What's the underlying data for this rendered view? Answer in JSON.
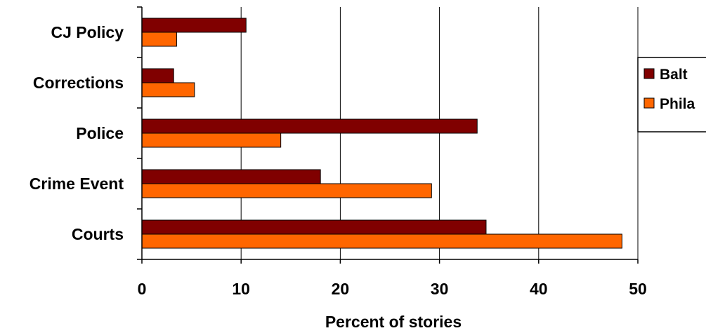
{
  "chart_data": {
    "type": "bar",
    "orientation": "horizontal",
    "categories": [
      "CJ Policy",
      "Corrections",
      "Police",
      "Crime Event",
      "Courts"
    ],
    "series": [
      {
        "name": "Balt",
        "color": "#800000",
        "values": [
          10.5,
          3.2,
          33.8,
          18.0,
          34.7
        ]
      },
      {
        "name": "Phila",
        "color": "#FF6600",
        "values": [
          3.5,
          5.3,
          14.0,
          29.2,
          48.4
        ]
      }
    ],
    "xlabel": "Percent of stories",
    "ylabel": "",
    "xlim": [
      0,
      50
    ],
    "xticks": [
      "0",
      "10",
      "20",
      "30",
      "40",
      "50"
    ],
    "grid": "vertical",
    "legend": "right"
  }
}
